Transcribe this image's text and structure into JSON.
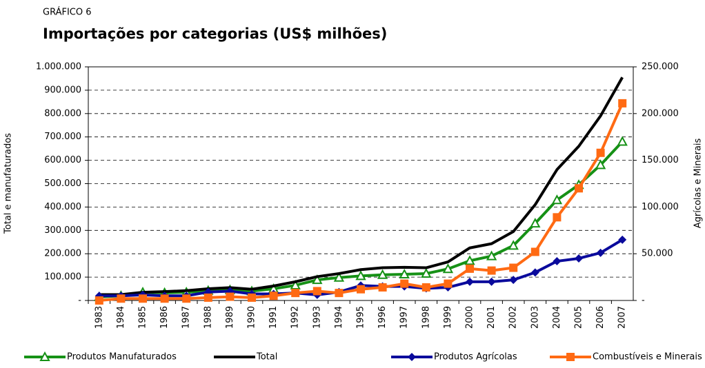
{
  "chart_data": {
    "type": "line",
    "label": "GRÁFICO 6",
    "title": "Importações por categorias (US$ milhões)",
    "ylabel": "Total e manufaturados",
    "y2label": "Agrícolas e Minerais",
    "categories": [
      "1983",
      "1984",
      "1985",
      "1986",
      "1987",
      "1988",
      "1989",
      "1990",
      "1991",
      "1992",
      "1993",
      "1994",
      "1995",
      "1996",
      "1997",
      "1998",
      "1999",
      "2000",
      "2001",
      "2002",
      "2003",
      "2004",
      "2005",
      "2006",
      "2007"
    ],
    "ylim": [
      0,
      1000000
    ],
    "yticks": [
      {
        "value": 0,
        "label": "-"
      },
      {
        "value": 100000,
        "label": "100.000"
      },
      {
        "value": 200000,
        "label": "200.000"
      },
      {
        "value": 300000,
        "label": "300.000"
      },
      {
        "value": 400000,
        "label": "400.000"
      },
      {
        "value": 500000,
        "label": "500.000"
      },
      {
        "value": 600000,
        "label": "600.000"
      },
      {
        "value": 700000,
        "label": "700.000"
      },
      {
        "value": 800000,
        "label": "800.000"
      },
      {
        "value": 900000,
        "label": "900.000"
      },
      {
        "value": 1000000,
        "label": "1.000.000"
      }
    ],
    "y2lim": [
      0,
      250000
    ],
    "y2ticks": [
      {
        "value": 0,
        "label": "-"
      },
      {
        "value": 50000,
        "label": "50.000"
      },
      {
        "value": 100000,
        "label": "100.000"
      },
      {
        "value": 150000,
        "label": "150.000"
      },
      {
        "value": 200000,
        "label": "200.000"
      },
      {
        "value": 250000,
        "label": "250.000"
      }
    ],
    "grid": true,
    "series": [
      {
        "name": "Produtos Manufaturados",
        "color": "#169116",
        "marker": "triangle",
        "values": [
          15000,
          20000,
          35000,
          33000,
          35000,
          42000,
          45000,
          40000,
          50000,
          65000,
          88000,
          98000,
          105000,
          110000,
          112000,
          115000,
          135000,
          170000,
          190000,
          235000,
          330000,
          430000,
          495000,
          580000,
          680000
        ]
      },
      {
        "name": "Total",
        "color": "#000000",
        "marker": "none",
        "values": [
          25000,
          25000,
          35000,
          38000,
          42000,
          50000,
          55000,
          48000,
          62000,
          80000,
          102000,
          115000,
          132000,
          140000,
          142000,
          140000,
          165000,
          225000,
          243000,
          295000,
          410000,
          560000,
          660000,
          790000,
          955000
        ]
      },
      {
        "name": "Produtos Agrícolas",
        "color": "#0a0a9c",
        "marker": "diamond",
        "axis": "y2",
        "values": [
          5000,
          5000,
          6000,
          5000,
          5000,
          9000,
          10000,
          7000,
          7000,
          8000,
          6000,
          9000,
          16000,
          15000,
          15000,
          13000,
          14000,
          20000,
          20000,
          22000,
          30000,
          42000,
          45000,
          51000,
          65000
        ]
      },
      {
        "name": "Combustíveis e Minerais",
        "color": "#ff6a13",
        "marker": "square",
        "axis": "y2",
        "values": [
          0,
          2000,
          2000,
          2000,
          2000,
          3000,
          4000,
          3000,
          5000,
          8000,
          10000,
          8000,
          12000,
          14000,
          18000,
          14000,
          18000,
          34000,
          32000,
          35000,
          52000,
          89000,
          120000,
          158000,
          211000
        ]
      }
    ]
  }
}
